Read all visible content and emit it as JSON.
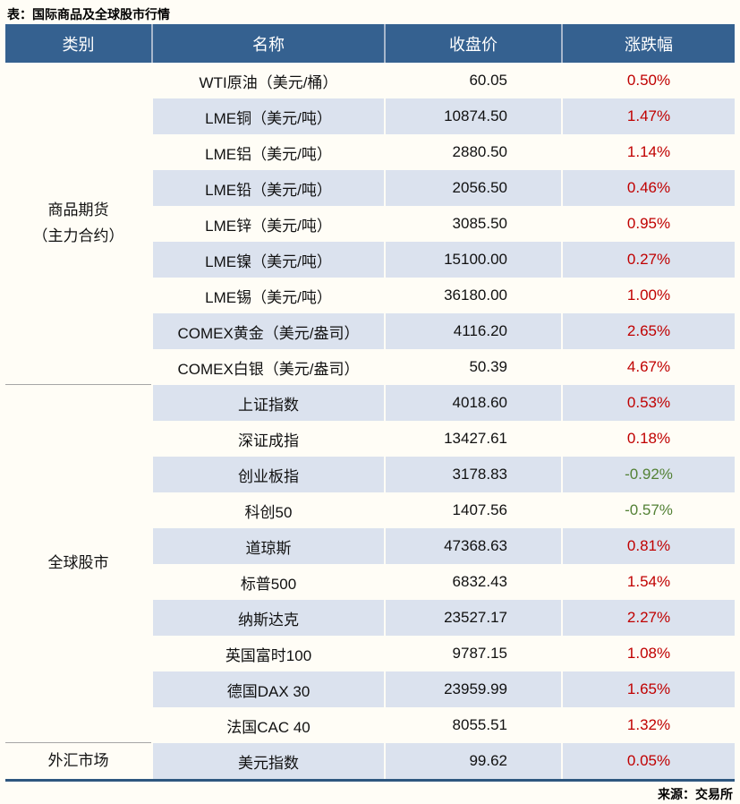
{
  "title": "表：国际商品及全球股市行情",
  "source": "来源：交易所",
  "colors": {
    "header_bg": "#356190",
    "stripe_bg": "#dbe2ee",
    "positive_change": "#c00000",
    "negative_change": "#538135",
    "bottom_border": "#2e577f"
  },
  "table": {
    "headers": [
      "类别",
      "名称",
      "收盘价",
      "涨跌幅"
    ],
    "sections": [
      {
        "category_lines": [
          "商品期货",
          "（主力合约）"
        ],
        "rows": [
          {
            "name": "WTI原油（美元/桶）",
            "close": "60.05",
            "change": "0.50%"
          },
          {
            "name": "LME铜（美元/吨）",
            "close": "10874.50",
            "change": "1.47%"
          },
          {
            "name": "LME铝（美元/吨）",
            "close": "2880.50",
            "change": "1.14%"
          },
          {
            "name": "LME铅（美元/吨）",
            "close": "2056.50",
            "change": "0.46%"
          },
          {
            "name": "LME锌（美元/吨）",
            "close": "3085.50",
            "change": "0.95%"
          },
          {
            "name": "LME镍（美元/吨）",
            "close": "15100.00",
            "change": "0.27%"
          },
          {
            "name": "LME锡（美元/吨）",
            "close": "36180.00",
            "change": "1.00%"
          },
          {
            "name": "COMEX黄金（美元/盎司）",
            "close": "4116.20",
            "change": "2.65%"
          },
          {
            "name": "COMEX白银（美元/盎司）",
            "close": "50.39",
            "change": "4.67%"
          }
        ]
      },
      {
        "category_lines": [
          "全球股市"
        ],
        "rows": [
          {
            "name": "上证指数",
            "close": "4018.60",
            "change": "0.53%"
          },
          {
            "name": "深证成指",
            "close": "13427.61",
            "change": "0.18%"
          },
          {
            "name": "创业板指",
            "close": "3178.83",
            "change": "-0.92%"
          },
          {
            "name": "科创50",
            "close": "1407.56",
            "change": "-0.57%"
          },
          {
            "name": "道琼斯",
            "close": "47368.63",
            "change": "0.81%"
          },
          {
            "name": "标普500",
            "close": "6832.43",
            "change": "1.54%"
          },
          {
            "name": "纳斯达克",
            "close": "23527.17",
            "change": "2.27%"
          },
          {
            "name": "英国富时100",
            "close": "9787.15",
            "change": "1.08%"
          },
          {
            "name": "德国DAX 30",
            "close": "23959.99",
            "change": "1.65%"
          },
          {
            "name": "法国CAC 40",
            "close": "8055.51",
            "change": "1.32%"
          }
        ]
      },
      {
        "category_lines": [
          "外汇市场"
        ],
        "rows": [
          {
            "name": "美元指数",
            "close": "99.62",
            "change": "0.05%"
          }
        ]
      }
    ]
  }
}
